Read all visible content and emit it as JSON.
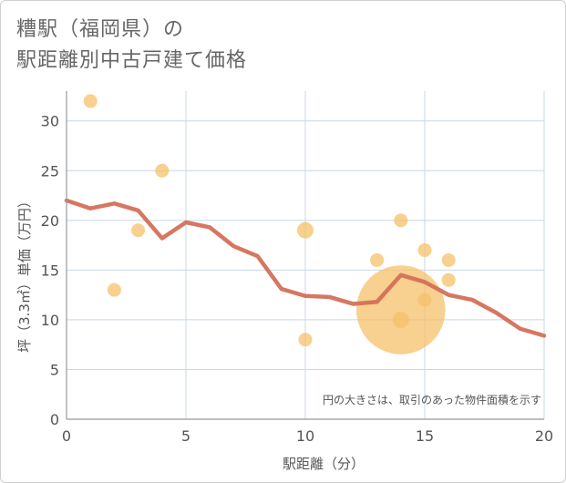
{
  "chart_data": {
    "type": "scatter",
    "title_line1": "糟駅（福岡県）の",
    "title_line2": "駅距離別中古戸建て価格",
    "xlabel": "駅距離（分）",
    "ylabel": "坪（3.3㎡）単価（万円）",
    "xlim": [
      0,
      20
    ],
    "ylim": [
      0,
      33
    ],
    "xticks": [
      0,
      5,
      10,
      15,
      20
    ],
    "yticks": [
      0,
      5,
      10,
      15,
      20,
      25,
      30
    ],
    "xtick_labels": [
      "0",
      "5",
      "10",
      "15",
      "20"
    ],
    "ytick_labels": [
      "0",
      "5",
      "10",
      "15",
      "20",
      "25",
      "30"
    ],
    "grid": true,
    "note": "円の大きさは、取引のあった物件面積を示す",
    "colors": {
      "bubble": "#f5c06a",
      "line": "#d4705a",
      "grid": "#c8d7e6",
      "axis": "#999999"
    },
    "scatter_points": [
      {
        "x": 1,
        "y": 32,
        "size": 1
      },
      {
        "x": 2,
        "y": 13,
        "size": 1
      },
      {
        "x": 3,
        "y": 19,
        "size": 1
      },
      {
        "x": 4,
        "y": 25,
        "size": 1
      },
      {
        "x": 10,
        "y": 19,
        "size": 1.2
      },
      {
        "x": 10,
        "y": 8,
        "size": 1
      },
      {
        "x": 13,
        "y": 16,
        "size": 1
      },
      {
        "x": 14,
        "y": 20,
        "size": 1
      },
      {
        "x": 14,
        "y": 11,
        "size": 6.5
      },
      {
        "x": 14,
        "y": 10,
        "size": 1.2
      },
      {
        "x": 15,
        "y": 17,
        "size": 1
      },
      {
        "x": 15,
        "y": 12,
        "size": 1
      },
      {
        "x": 16,
        "y": 16,
        "size": 1
      },
      {
        "x": 16,
        "y": 14,
        "size": 1
      }
    ],
    "trend_line": {
      "x": [
        0,
        1,
        2,
        3,
        4,
        5,
        6,
        7,
        8,
        9,
        10,
        11,
        12,
        13,
        14,
        15,
        16,
        17,
        18,
        19,
        20
      ],
      "y": [
        22,
        21.2,
        21.7,
        21.0,
        18.2,
        19.8,
        19.3,
        17.4,
        16.4,
        13.1,
        12.4,
        12.3,
        11.6,
        11.8,
        14.5,
        13.8,
        12.5,
        12.0,
        10.7,
        9.1,
        8.4
      ]
    }
  }
}
